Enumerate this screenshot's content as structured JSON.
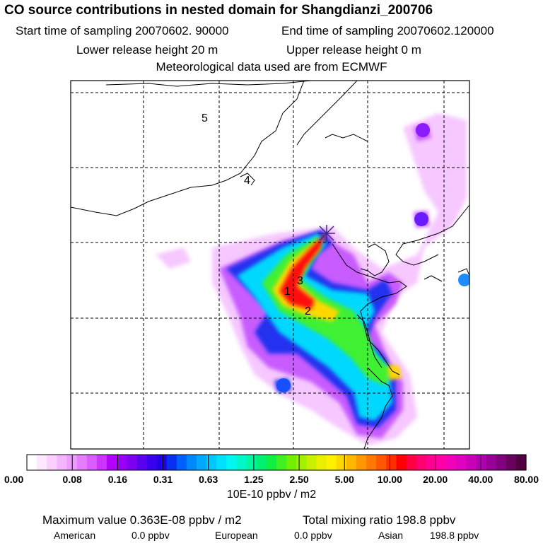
{
  "header": {
    "title": "CO  source contributions in nested domain for Shangdianzi_200706",
    "start_time": "Start time of sampling 20070602. 90000",
    "end_time": "End time of sampling 20070602.120000",
    "lower_release": "Lower release height   20 m",
    "upper_release": "Upper release height    0 m",
    "met_data": "Meteorological data used are from ECMWF"
  },
  "chart_data": {
    "type": "heatmap",
    "colorbar": {
      "unit_label": "10E-10 ppbv / m2",
      "tick_labels": [
        "0.00",
        "0.08",
        "0.16",
        "0.31",
        "0.63",
        "1.25",
        "2.50",
        "5.00",
        "10.00",
        "20.00",
        "40.00",
        "80.00"
      ],
      "colors": [
        "#ffffff",
        "#fde8ff",
        "#fad0ff",
        "#f6b6ff",
        "#ef9cff",
        "#e67dff",
        "#db5cff",
        "#cc33ff",
        "#b400ff",
        "#9800f8",
        "#7d00f0",
        "#5a00f0",
        "#3a00ee",
        "#2000e8",
        "#0830f0",
        "#0060ff",
        "#0088ff",
        "#00a8ff",
        "#00c8ff",
        "#00e0ff",
        "#00f8f0",
        "#00f8c8",
        "#00f8a0",
        "#00f070",
        "#10f040",
        "#40f020",
        "#70f000",
        "#a0f000",
        "#c8f000",
        "#e8f000",
        "#fff000",
        "#ffd800",
        "#ffb800",
        "#ff9800",
        "#ff7800",
        "#ff5800",
        "#ff3000",
        "#ff0000",
        "#ff0040",
        "#ff0070",
        "#ff0090",
        "#ff00a8",
        "#f000b8",
        "#e000c0",
        "#c800b8",
        "#b000b0",
        "#980098",
        "#800080",
        "#680060",
        "#500040"
      ]
    },
    "station_marker": "Shangdianzi",
    "region_labels": [
      "1",
      "2",
      "3",
      "4",
      "5"
    ],
    "grid": true
  },
  "summary": {
    "max_value": "Maximum value  0.363E-08 ppbv / m2",
    "total": "Total mixing ratio     198.8 ppbv",
    "american_label": "American",
    "american_value": "0.0 ppbv",
    "european_label": "European",
    "european_value": "0.0 ppbv",
    "asian_label": "Asian",
    "asian_value": "198.8 ppbv"
  }
}
